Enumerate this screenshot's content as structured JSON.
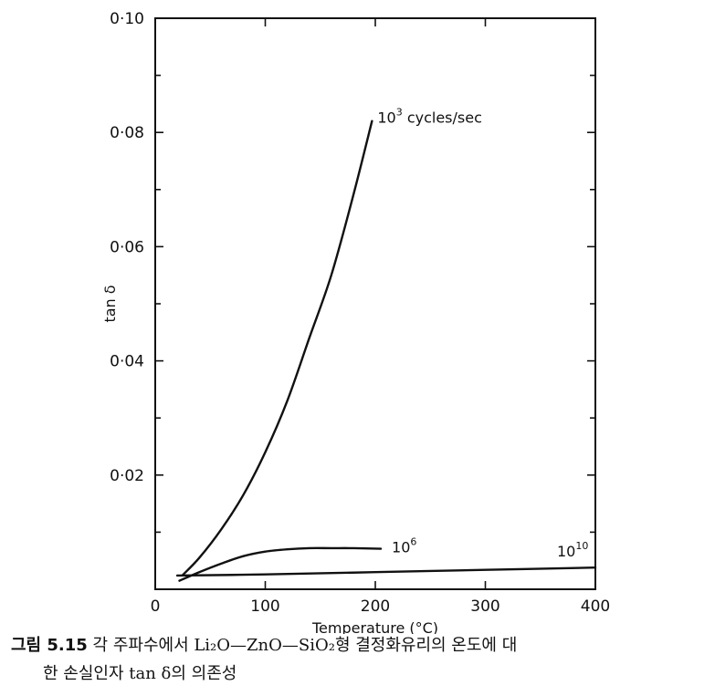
{
  "chart_data": {
    "type": "line",
    "ylabel": "tan δ",
    "xlabel": "Temperature (°C)",
    "xlim": [
      0,
      400
    ],
    "ylim": [
      0,
      0.1
    ],
    "x_ticks": [
      0,
      100,
      200,
      300,
      400
    ],
    "x_tick_labels": [
      "0",
      "100",
      "200",
      "300",
      "400"
    ],
    "y_ticks": [
      0.02,
      0.04,
      0.06,
      0.08,
      0.1
    ],
    "y_tick_labels": [
      "0·02",
      "0·04",
      "0·06",
      "0·08",
      "0·10"
    ],
    "grid": false,
    "legend": "none (series labelled at line ends)",
    "series": [
      {
        "name": "10³ cycles/sec",
        "label_base": "10",
        "label_sup": "3",
        "label_rest": " cycles/sec",
        "x": [
          25,
          40,
          60,
          80,
          100,
          120,
          140,
          160,
          180,
          197
        ],
        "y": [
          0.0025,
          0.0055,
          0.0105,
          0.0165,
          0.024,
          0.033,
          0.044,
          0.055,
          0.069,
          0.082
        ]
      },
      {
        "name": "10⁶",
        "label_base": "10",
        "label_sup": "6",
        "label_rest": "",
        "x": [
          22,
          40,
          60,
          80,
          100,
          120,
          140,
          160,
          180,
          205
        ],
        "y": [
          0.0015,
          0.003,
          0.0045,
          0.0058,
          0.0066,
          0.007,
          0.0072,
          0.0072,
          0.0072,
          0.0071
        ]
      },
      {
        "name": "10¹⁰",
        "label_base": "10",
        "label_sup": "10",
        "label_rest": "",
        "x": [
          20,
          100,
          200,
          300,
          400
        ],
        "y": [
          0.0024,
          0.0026,
          0.003,
          0.0034,
          0.0038
        ]
      }
    ]
  },
  "caption": {
    "figure_label": "그림 5.15",
    "line1": "각 주파수에서 Li₂O—ZnO—SiO₂형 결정화유리의 온도에 대",
    "line2": "한 손실인자 tan δ의 의존성"
  }
}
